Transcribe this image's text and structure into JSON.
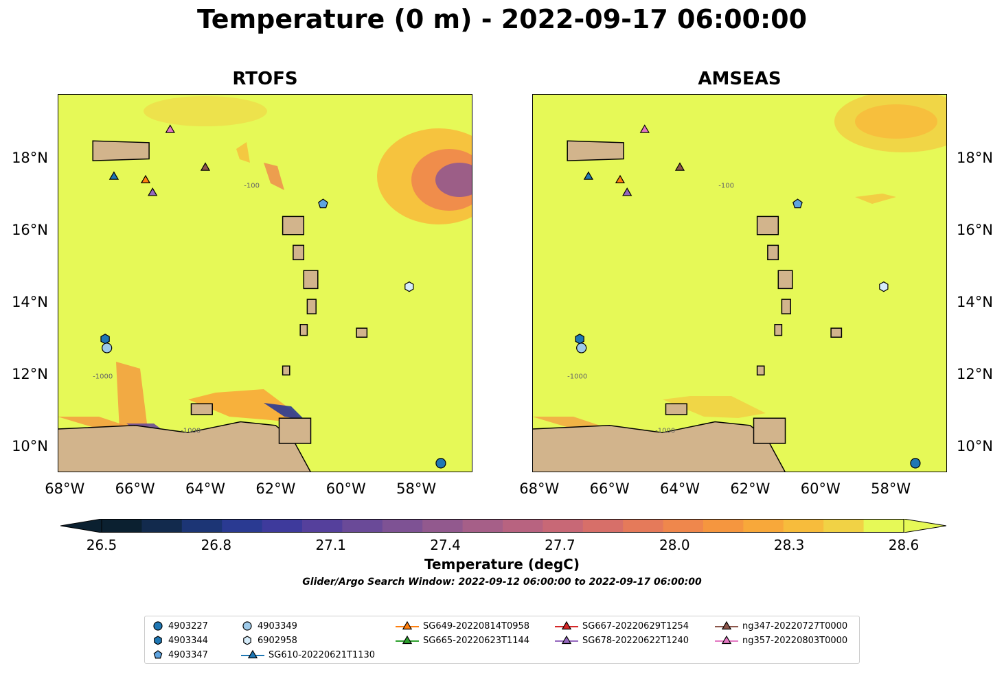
{
  "title": "Temperature (0 m) - 2022-09-17 06:00:00",
  "panels": [
    {
      "title": "RTOFS"
    },
    {
      "title": "AMSEAS"
    }
  ],
  "map": {
    "lon_range": [
      -68.2,
      -56.4
    ],
    "lat_range": [
      9.3,
      19.8
    ],
    "x_ticks": [
      "68°W",
      "66°W",
      "64°W",
      "62°W",
      "60°W",
      "58°W"
    ],
    "x_tick_values": [
      -68,
      -66,
      -64,
      -62,
      -60,
      -58
    ],
    "y_ticks": [
      "10°N",
      "12°N",
      "14°N",
      "16°N",
      "18°N"
    ],
    "y_tick_values": [
      10,
      12,
      14,
      16,
      18
    ],
    "contour_labels": [
      "-100",
      "-1000"
    ],
    "ocean_color": "#e6f957",
    "land_color": "#d2b48c"
  },
  "colorbar": {
    "label": "Temperature (degC)",
    "ticks": [
      "26.5",
      "26.8",
      "27.1",
      "27.4",
      "27.7",
      "28.0",
      "28.3",
      "28.6"
    ],
    "tick_values": [
      26.5,
      26.8,
      27.1,
      27.4,
      27.7,
      28.0,
      28.3,
      28.6
    ],
    "range": [
      26.5,
      28.6
    ],
    "colors": [
      "#0b2030",
      "#122a4d",
      "#1c3575",
      "#2a3a92",
      "#3e3a9c",
      "#55409c",
      "#6a4a98",
      "#7e5294",
      "#92598e",
      "#a65f88",
      "#b86380",
      "#c86876",
      "#d76f69",
      "#e57a5a",
      "#ef874c",
      "#f5963f",
      "#f8a83a",
      "#f7bc3c",
      "#f1d245",
      "#e6f957"
    ]
  },
  "search_window": "Glider/Argo Search Window: 2022-09-12 06:00:00 to 2022-09-17 06:00:00",
  "legend": [
    {
      "label": "4903227",
      "marker": "circle",
      "color": "#1f77b4"
    },
    {
      "label": "4903344",
      "marker": "hexagon",
      "color": "#1f77b4"
    },
    {
      "label": "4903347",
      "marker": "pentagon",
      "color": "#5ea3df"
    },
    {
      "label": "4903349",
      "marker": "circle",
      "color": "#9ecae9"
    },
    {
      "label": "6902958",
      "marker": "hexagon",
      "color": "#d6ecfa"
    },
    {
      "label": "SG610-20220621T1130",
      "marker": "triangle-line",
      "color": "#1f77b4"
    },
    {
      "label": "SG649-20220814T0958",
      "marker": "triangle-line",
      "color": "#ff7f0e"
    },
    {
      "label": "SG665-20220623T1144",
      "marker": "triangle-line",
      "color": "#2ca02c"
    },
    {
      "label": "SG667-20220629T1254",
      "marker": "triangle-line",
      "color": "#d62728"
    },
    {
      "label": "SG678-20220622T1240",
      "marker": "triangle-line",
      "color": "#9467bd"
    },
    {
      "label": "ng347-20220727T0000",
      "marker": "triangle-line",
      "color": "#8c564b"
    },
    {
      "label": "ng357-20220803T0000",
      "marker": "triangle-line",
      "color": "#e377c2"
    }
  ],
  "markers": [
    {
      "label": "4903227",
      "lon": -57.3,
      "lat": 9.55
    },
    {
      "label": "4903344",
      "lon": -66.85,
      "lat": 13.0
    },
    {
      "label": "4903347",
      "lon": -60.65,
      "lat": 16.75
    },
    {
      "label": "4903349",
      "lon": -66.8,
      "lat": 12.75
    },
    {
      "label": "6902958",
      "lon": -58.2,
      "lat": 14.45
    },
    {
      "label": "SG610-20220621T1130",
      "lon": -66.6,
      "lat": 17.5
    },
    {
      "label": "SG649-20220814T0958",
      "lon": -65.7,
      "lat": 17.4
    },
    {
      "label": "SG678-20220622T1240",
      "lon": -65.5,
      "lat": 17.05
    },
    {
      "label": "ng347-20220727T0000",
      "lon": -64.0,
      "lat": 17.75
    },
    {
      "label": "ng357-20220803T0000",
      "lon": -65.0,
      "lat": 18.8
    }
  ]
}
